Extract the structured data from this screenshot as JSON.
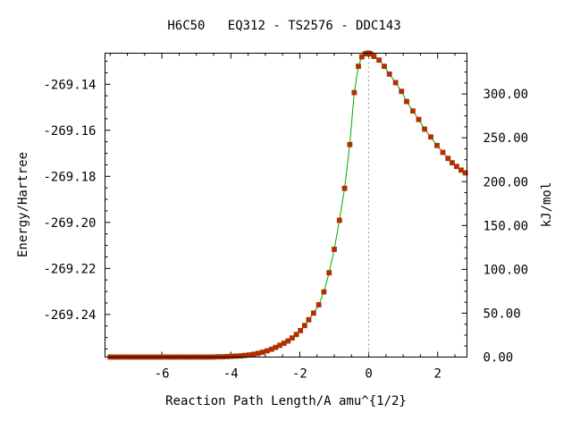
{
  "chart_data": {
    "type": "line",
    "title": "H6C50   EQ312 - TS2576 - DDC143",
    "xlabel": "Reaction Path Length/A amu^{1/2}",
    "ylabel": "Energy/Hartree",
    "y2label": "kJ/mol",
    "xlim": [
      -7.65,
      2.85
    ],
    "ylim": [
      -269.2585,
      -269.1265
    ],
    "y2lim": [
      0.0,
      346.5
    ],
    "x_ticks": [
      -6,
      -4,
      -2,
      0,
      2
    ],
    "x_tick_labels": [
      "-6",
      "-4",
      "-2",
      "0",
      "2"
    ],
    "y_ticks": [
      -269.14,
      -269.16,
      -269.18,
      -269.2,
      -269.22,
      -269.24
    ],
    "y_tick_labels": [
      "-269.14",
      "-269.16",
      "-269.18",
      "-269.20",
      "-269.22",
      "-269.24"
    ],
    "y2_ticks": [
      0,
      50,
      100,
      150,
      200,
      250,
      300
    ],
    "y2_tick_labels": [
      "0.00",
      "50.00",
      "100.00",
      "150.00",
      "200.00",
      "250.00",
      "300.00"
    ],
    "ts_marker_x": 0.0,
    "line_color": "#00aa00",
    "marker_color": "#cc2200",
    "marker_edge_color": "#884400",
    "ts_line_color": "#999999",
    "series": [
      {
        "x": [
          -7.5,
          -7.37,
          -7.24,
          -7.11,
          -6.98,
          -6.85,
          -6.72,
          -6.59,
          -6.46,
          -6.33,
          -6.2,
          -6.07,
          -5.94,
          -5.81,
          -5.68,
          -5.55,
          -5.42,
          -5.29,
          -5.16,
          -5.03,
          -4.9,
          -4.77,
          -4.64,
          -4.51,
          -4.38,
          -4.25,
          -4.12,
          -3.99,
          -3.86,
          -3.73,
          -3.6,
          -3.47,
          -3.34,
          -3.21,
          -3.08,
          -2.95,
          -2.82,
          -2.7,
          -2.58,
          -2.46,
          -2.34,
          -2.22,
          -2.1,
          -1.98,
          -1.86,
          -1.74,
          -1.6,
          -1.45,
          -1.3,
          -1.15,
          -1.0,
          -0.85,
          -0.7,
          -0.55,
          -0.42,
          -0.3,
          -0.2,
          -0.1,
          -0.03,
          0.0,
          0.05,
          0.15,
          0.3,
          0.45,
          0.6,
          0.78,
          0.95,
          1.1,
          1.28,
          1.45,
          1.62,
          1.8,
          1.98,
          2.15,
          2.3,
          2.42,
          2.55,
          2.68,
          2.8
        ],
        "y": [
          -269.2585,
          -269.2585,
          -269.2585,
          -269.2585,
          -269.2585,
          -269.2585,
          -269.2585,
          -269.2585,
          -269.2585,
          -269.2585,
          -269.2585,
          -269.2585,
          -269.2585,
          -269.2585,
          -269.2585,
          -269.2585,
          -269.2585,
          -269.2585,
          -269.2585,
          -269.2585,
          -269.2585,
          -269.2585,
          -269.2585,
          -269.2585,
          -269.2584,
          -269.2584,
          -269.2583,
          -269.2582,
          -269.2581,
          -269.258,
          -269.2578,
          -269.2576,
          -269.2573,
          -269.2569,
          -269.2564,
          -269.2558,
          -269.2551,
          -269.2543,
          -269.2534,
          -269.2525,
          -269.2515,
          -269.2502,
          -269.2487,
          -269.247,
          -269.2448,
          -269.2423,
          -269.2394,
          -269.2358,
          -269.2302,
          -269.2219,
          -269.2117,
          -269.1991,
          -269.1852,
          -269.1662,
          -269.1436,
          -269.1322,
          -269.1281,
          -269.1268,
          -269.1265,
          -269.1265,
          -269.1268,
          -269.1279,
          -269.1295,
          -269.1322,
          -269.1356,
          -269.1393,
          -269.1431,
          -269.1475,
          -269.1516,
          -269.1553,
          -269.1595,
          -269.1629,
          -269.1666,
          -269.1696,
          -269.1722,
          -269.1741,
          -269.1757,
          -269.1773,
          -269.1785
        ]
      }
    ]
  }
}
